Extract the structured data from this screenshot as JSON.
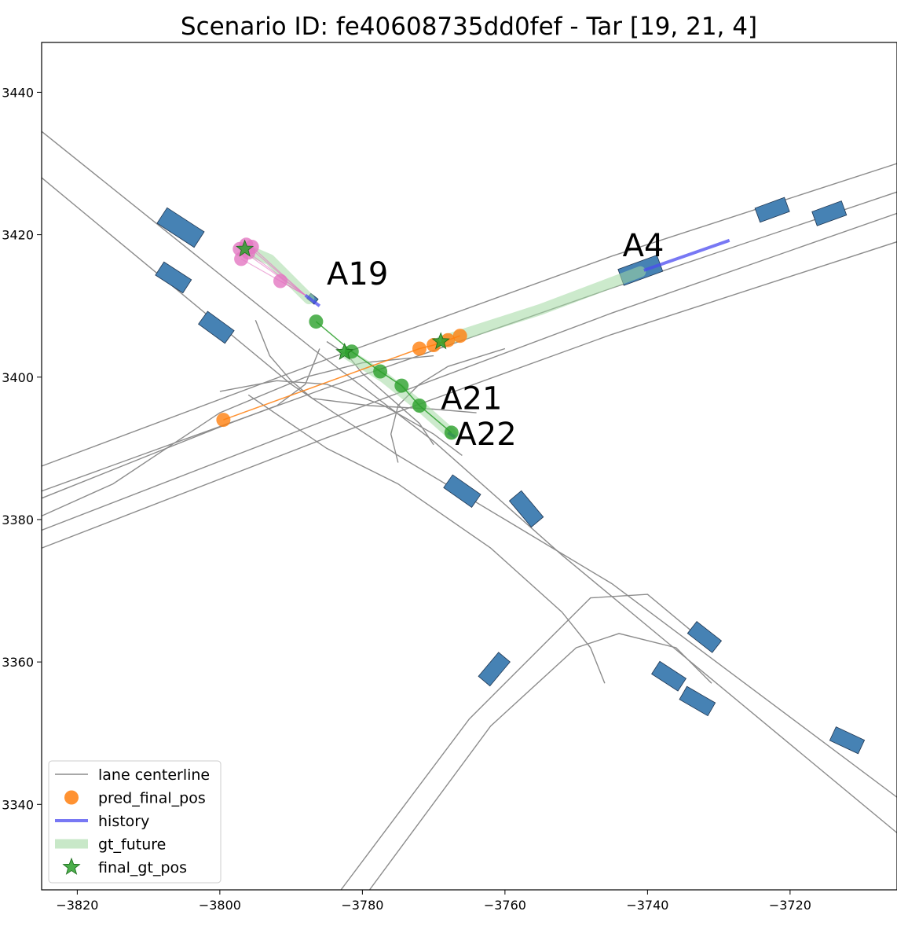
{
  "chart_data": {
    "type": "scatter",
    "title": "Scenario ID: fe40608735dd0fef - Tar [19, 21, 4]",
    "xlabel": "",
    "ylabel": "",
    "xlim": [
      -3825,
      -3705
    ],
    "ylim": [
      3328,
      3447
    ],
    "grid": false,
    "legend_position": "lower-left",
    "x_ticks": [
      -3820,
      -3800,
      -3780,
      -3760,
      -3740,
      -3720
    ],
    "x_tick_labels": [
      "−3820",
      "−3800",
      "−3780",
      "−3760",
      "−3740",
      "−3720"
    ],
    "y_ticks": [
      3340,
      3360,
      3380,
      3400,
      3420,
      3440
    ],
    "y_tick_labels": [
      "3340",
      "3360",
      "3380",
      "3400",
      "3420",
      "3440"
    ],
    "colors": {
      "lane": "#8c8c8c",
      "vehicle": "#4682b4",
      "history": "#4b4bf0",
      "gt_future": "#a3d9a3",
      "final_gt": "#2ca02c",
      "pred_a4": "#ff7f0e",
      "pred_a21": "#2ca02c",
      "pred_a19": "#e377c2"
    },
    "legend": [
      {
        "label": "lane centerline",
        "kind": "line"
      },
      {
        "label": "pred_final_pos",
        "kind": "dot"
      },
      {
        "label": "history",
        "kind": "thick-line"
      },
      {
        "label": "gt_future",
        "kind": "band"
      },
      {
        "label": "final_gt_pos",
        "kind": "star"
      }
    ],
    "lanes": [
      [
        [
          -3825,
          3434.5
        ],
        [
          -3787,
          3404
        ],
        [
          -3770,
          3391
        ],
        [
          -3752,
          3375
        ],
        [
          -3705,
          3336
        ]
      ],
      [
        [
          -3825,
          3428
        ],
        [
          -3790,
          3399
        ],
        [
          -3775,
          3389
        ],
        [
          -3760,
          3380
        ],
        [
          -3745,
          3371
        ],
        [
          -3705,
          3341
        ]
      ],
      [
        [
          -3825,
          3387.5
        ],
        [
          -3785,
          3402.5
        ],
        [
          -3745,
          3417
        ],
        [
          -3705,
          3430
        ]
      ],
      [
        [
          -3825,
          3384
        ],
        [
          -3785,
          3398.5
        ],
        [
          -3745,
          3412.5
        ],
        [
          -3705,
          3426
        ]
      ],
      [
        [
          -3825,
          3378.5
        ],
        [
          -3785,
          3394
        ],
        [
          -3745,
          3409
        ],
        [
          -3705,
          3423
        ]
      ],
      [
        [
          -3825,
          3376
        ],
        [
          -3785,
          3391.5
        ],
        [
          -3745,
          3406
        ],
        [
          -3705,
          3419
        ]
      ],
      [
        [
          -3783,
          3328
        ],
        [
          -3765,
          3352
        ],
        [
          -3752,
          3365
        ],
        [
          -3748,
          3369
        ],
        [
          -3740,
          3369.5
        ],
        [
          -3731,
          3362
        ]
      ],
      [
        [
          -3779,
          3328
        ],
        [
          -3762,
          3351
        ],
        [
          -3750,
          3362
        ],
        [
          -3744,
          3364
        ],
        [
          -3736,
          3362
        ],
        [
          -3731,
          3357
        ]
      ],
      [
        [
          -3796,
          3397.5
        ],
        [
          -3785,
          3390
        ],
        [
          -3775,
          3385
        ],
        [
          -3762,
          3376
        ],
        [
          -3752,
          3367
        ],
        [
          -3748,
          3362
        ],
        [
          -3746,
          3357
        ]
      ],
      [
        [
          -3825,
          3380.5
        ],
        [
          -3815,
          3385
        ],
        [
          -3800,
          3395
        ],
        [
          -3788,
          3400
        ],
        [
          -3780,
          3402
        ],
        [
          -3770,
          3403
        ]
      ],
      [
        [
          -3800,
          3398
        ],
        [
          -3792,
          3399.5
        ],
        [
          -3785,
          3399
        ],
        [
          -3777,
          3396
        ],
        [
          -3770,
          3392
        ],
        [
          -3766,
          3389
        ]
      ],
      [
        [
          -3795,
          3408
        ],
        [
          -3793,
          3403
        ],
        [
          -3790,
          3399.5
        ],
        [
          -3787,
          3397
        ],
        [
          -3779,
          3396
        ],
        [
          -3770,
          3395.5
        ],
        [
          -3764,
          3395
        ]
      ],
      [
        [
          -3786,
          3404
        ],
        [
          -3788,
          3399
        ],
        [
          -3792,
          3396
        ],
        [
          -3800,
          3393
        ],
        [
          -3810,
          3389
        ],
        [
          -3825,
          3383
        ]
      ],
      [
        [
          -3770,
          3390.5
        ],
        [
          -3772,
          3393.5
        ],
        [
          -3776,
          3397
        ],
        [
          -3780,
          3400.5
        ],
        [
          -3782,
          3403
        ],
        [
          -3785,
          3405
        ]
      ],
      [
        [
          -3775,
          3388
        ],
        [
          -3776,
          3392
        ],
        [
          -3775,
          3396
        ],
        [
          -3772,
          3399
        ],
        [
          -3768,
          3401.5
        ],
        [
          -3760,
          3404
        ]
      ]
    ],
    "vehicles": [
      {
        "x": -3805.5,
        "y": 3421.0,
        "len": 6.2,
        "wid": 2.6,
        "heading": -33
      },
      {
        "x": -3806.5,
        "y": 3414.0,
        "len": 4.6,
        "wid": 2.2,
        "heading": -33
      },
      {
        "x": -3800.5,
        "y": 3407.0,
        "len": 4.6,
        "wid": 2.2,
        "heading": -36
      },
      {
        "x": -3787.0,
        "y": 3411.0,
        "len": 1.3,
        "wid": 0.9,
        "heading": -38
      },
      {
        "x": -3741.0,
        "y": 3415.0,
        "len": 5.8,
        "wid": 2.4,
        "heading": 20
      },
      {
        "x": -3722.5,
        "y": 3423.5,
        "len": 4.4,
        "wid": 2.1,
        "heading": 20
      },
      {
        "x": -3714.5,
        "y": 3423.0,
        "len": 4.4,
        "wid": 2.1,
        "heading": 20
      },
      {
        "x": -3766.0,
        "y": 3384.0,
        "len": 4.8,
        "wid": 2.2,
        "heading": -35
      },
      {
        "x": -3757.0,
        "y": 3381.5,
        "len": 4.8,
        "wid": 2.2,
        "heading": -50
      },
      {
        "x": -3732.0,
        "y": 3363.5,
        "len": 4.4,
        "wid": 2.1,
        "heading": -38
      },
      {
        "x": -3761.5,
        "y": 3359.0,
        "len": 4.4,
        "wid": 2.1,
        "heading": 50
      },
      {
        "x": -3737.0,
        "y": 3358.0,
        "len": 4.4,
        "wid": 2.1,
        "heading": -33
      },
      {
        "x": -3733.0,
        "y": 3354.5,
        "len": 4.6,
        "wid": 2.1,
        "heading": -30
      },
      {
        "x": -3712.0,
        "y": 3349.0,
        "len": 4.4,
        "wid": 2.1,
        "heading": -25
      }
    ],
    "agents": [
      {
        "name": "A19",
        "label_x": -3785,
        "label_y": 3413,
        "history": [
          [
            -3788,
            3411.5
          ],
          [
            -3786,
            3410
          ]
        ],
        "gt_future": [
          [
            -3787.5,
            3411
          ],
          [
            -3790,
            3413.5
          ],
          [
            -3793,
            3416.5
          ],
          [
            -3796.5,
            3418
          ]
        ],
        "final_gt": [
          -3796.5,
          3418
        ],
        "preds": [
          [
            -3797.2,
            3418.0
          ],
          [
            -3795.5,
            3418.3
          ],
          [
            -3796.3,
            3418.6
          ],
          [
            -3797.0,
            3416.6
          ],
          [
            -3791.5,
            3413.5
          ],
          [
            -3796.0,
            3417.5
          ]
        ],
        "pred_color": "pred_a19",
        "pred_line": false
      },
      {
        "name": "A21",
        "label_x": -3769,
        "label_y": 3395.5,
        "history": [
          [
            -3768,
            3392.2
          ],
          [
            -3767,
            3391.6
          ]
        ],
        "gt_future": [
          [
            -3767.5,
            3392
          ],
          [
            -3772,
            3396
          ],
          [
            -3777,
            3400
          ],
          [
            -3782.5,
            3403.5
          ]
        ],
        "final_gt": [
          -3782.5,
          3403.5
        ],
        "preds": [
          [
            -3767.5,
            3392.2
          ],
          [
            -3772.0,
            3396.0
          ],
          [
            -3774.5,
            3398.8
          ],
          [
            -3777.5,
            3400.8
          ],
          [
            -3781.5,
            3403.6
          ],
          [
            -3786.5,
            3407.8
          ]
        ],
        "pred_color": "pred_a21",
        "pred_line": true
      },
      {
        "name": "A4",
        "label_x": -3743.5,
        "label_y": 3417,
        "history": [
          [
            -3740.5,
            3415
          ],
          [
            -3728.5,
            3419.2
          ]
        ],
        "gt_future": [
          [
            -3741,
            3414.8
          ],
          [
            -3755,
            3409.5
          ],
          [
            -3769,
            3405
          ]
        ],
        "final_gt": [
          -3769,
          3405
        ],
        "preds": [
          [
            -3799.5,
            3394.0
          ],
          [
            -3772.0,
            3404.0
          ],
          [
            -3770.0,
            3404.5
          ],
          [
            -3768.0,
            3405.2
          ],
          [
            -3766.3,
            3405.8
          ]
        ],
        "pred_color": "pred_a4",
        "pred_line": true
      },
      {
        "name": "A22",
        "label_x": -3767,
        "label_y": 3390.5,
        "history": [],
        "gt_future": [],
        "final_gt": null,
        "preds": [],
        "pred_color": "pred_a4",
        "pred_line": false
      }
    ]
  }
}
